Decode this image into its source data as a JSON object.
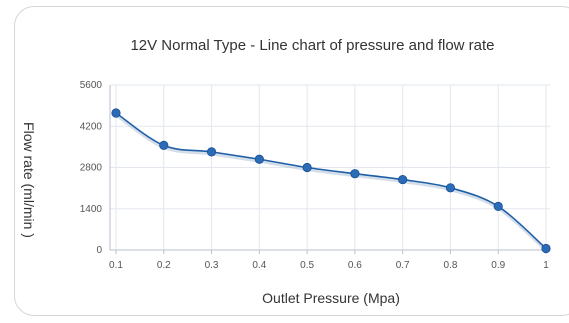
{
  "chart_data": {
    "type": "line",
    "title": "12V Normal Type - Line chart of pressure and flow rate",
    "xlabel": "Outlet Pressure (Mpa)",
    "ylabel": "Flow rate (ml/min )",
    "x": [
      0.1,
      0.2,
      0.3,
      0.4,
      0.5,
      0.6,
      0.7,
      0.8,
      0.9,
      1
    ],
    "x_tick_labels": [
      "0.1",
      "0.2",
      "0.3",
      "0.4",
      "0.5",
      "0.6",
      "0.7",
      "0.8",
      "0.9",
      "1"
    ],
    "y_ticks": [
      0,
      1400,
      2800,
      4200,
      5600
    ],
    "ylim": [
      0,
      5600
    ],
    "series": [
      {
        "values": [
          4650,
          3550,
          3330,
          3080,
          2800,
          2590,
          2390,
          2110,
          1480,
          50
        ]
      }
    ],
    "grid": true,
    "legend": "none",
    "colors": {
      "line": "#1f5fa8",
      "marker": "#2b6cb8",
      "grid": "#e3e8ee",
      "axis": "#b8c2cc"
    }
  }
}
